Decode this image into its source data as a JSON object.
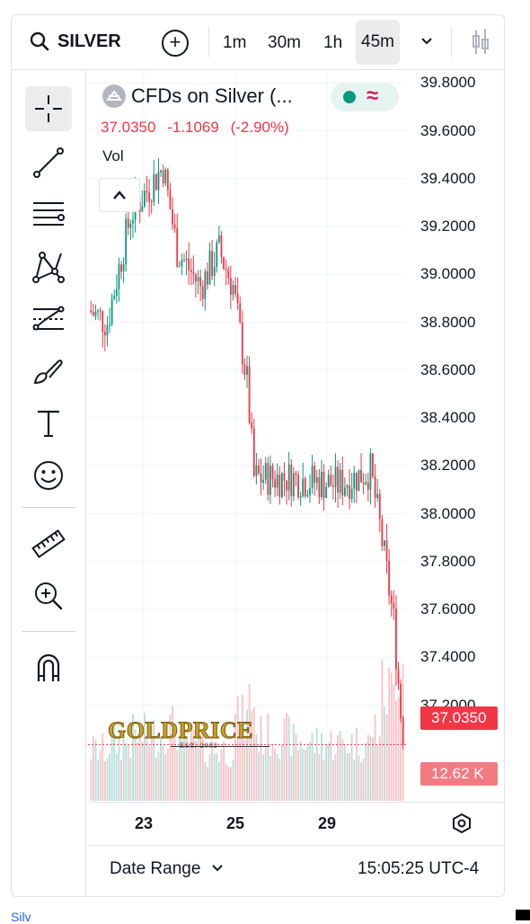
{
  "header": {
    "symbol": "SILVER",
    "timeframes": [
      "1m",
      "30m",
      "1h",
      "45m"
    ],
    "active_timeframe": "45m"
  },
  "legend": {
    "title": "CFDs on Silver (...",
    "last": "37.0350",
    "change": "-1.1069",
    "change_pct": "(-2.90%)",
    "vol_label": "Vol"
  },
  "price_axis": {
    "ticks": [
      "39.8000",
      "39.6000",
      "39.4000",
      "39.2000",
      "39.0000",
      "38.8000",
      "38.6000",
      "38.4000",
      "38.2000",
      "38.0000",
      "37.8000",
      "37.6000",
      "37.4000",
      "37.2000"
    ],
    "last_price_tag": "37.0350",
    "volume_tag": "12.62 K"
  },
  "time_axis": {
    "labels": [
      "23",
      "25",
      "29"
    ]
  },
  "footer": {
    "date_range": "Date Range",
    "clock": "15:05:25 UTC-4"
  },
  "watermark": {
    "brand": "GOLDPRICE",
    "est": "EST. 2002"
  },
  "fragment": {
    "text": "Silv"
  },
  "colors": {
    "up": "#089981",
    "down": "#f23645",
    "up_vol": "#b7e0da",
    "down_vol": "#f6c4c8"
  },
  "chart_data": {
    "type": "candlestick",
    "ylim": [
      36.8,
      39.85
    ],
    "x_tick_labels": [
      "23",
      "25",
      "29"
    ],
    "last_price": 37.035,
    "segments": [
      {
        "n": 8,
        "start": 38.85,
        "end": 38.8,
        "vol": 0.35
      },
      {
        "n": 10,
        "start": 38.8,
        "end": 39.25,
        "vol": 0.4
      },
      {
        "n": 14,
        "start": 39.25,
        "end": 39.45,
        "vol": 0.45
      },
      {
        "n": 6,
        "start": 39.45,
        "end": 39.1,
        "vol": 0.5
      },
      {
        "n": 10,
        "start": 39.1,
        "end": 38.95,
        "vol": 0.4
      },
      {
        "n": 8,
        "start": 38.95,
        "end": 39.1,
        "vol": 0.35
      },
      {
        "n": 6,
        "start": 39.1,
        "end": 38.95,
        "vol": 0.35
      },
      {
        "n": 6,
        "start": 38.95,
        "end": 38.55,
        "vol": 0.55
      },
      {
        "n": 3,
        "start": 38.55,
        "end": 38.15,
        "vol": 0.7
      },
      {
        "n": 16,
        "start": 38.15,
        "end": 38.15,
        "vol": 0.45
      },
      {
        "n": 20,
        "start": 38.15,
        "end": 38.12,
        "vol": 0.4
      },
      {
        "n": 14,
        "start": 38.12,
        "end": 38.18,
        "vol": 0.4
      },
      {
        "n": 4,
        "start": 38.18,
        "end": 37.95,
        "vol": 0.5
      },
      {
        "n": 6,
        "start": 37.95,
        "end": 37.55,
        "vol": 0.75
      },
      {
        "n": 4,
        "start": 37.55,
        "end": 37.04,
        "vol": 0.95
      }
    ]
  }
}
